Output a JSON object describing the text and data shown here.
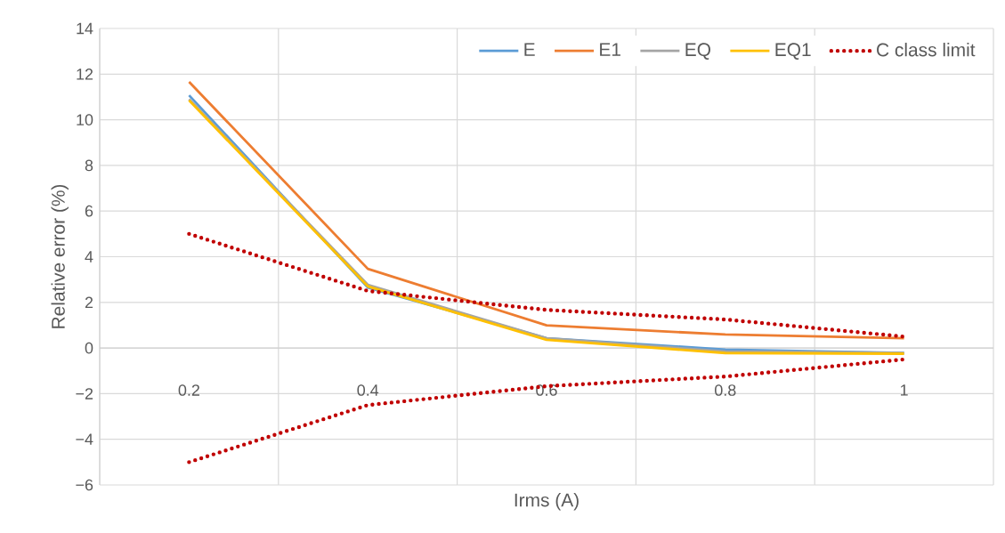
{
  "chart_data": {
    "type": "line",
    "xlabel": "Irms (A)",
    "ylabel": "Relative error (%)",
    "categories": [
      "0.2",
      "0.4",
      "0.6",
      "0.8",
      "1"
    ],
    "series": [
      {
        "name": "E",
        "color": "#5b9bd5",
        "values": [
          11.07,
          2.65,
          0.43,
          -0.07,
          -0.22
        ]
      },
      {
        "name": "E1",
        "color": "#ed7d31",
        "values": [
          11.66,
          3.47,
          0.99,
          0.59,
          0.43
        ]
      },
      {
        "name": "EQ",
        "color": "#a5a5a5",
        "values": [
          10.9,
          2.77,
          0.43,
          -0.15,
          -0.22
        ]
      },
      {
        "name": "EQ1",
        "color": "#ffc000",
        "values": [
          10.85,
          2.7,
          0.36,
          -0.22,
          -0.25
        ]
      },
      {
        "name": "C class limit",
        "color": "#c00000",
        "line_style": "dotted",
        "values": [
          5,
          2.5,
          1.67,
          1.25,
          0.5
        ]
      },
      {
        "color": "#c00000",
        "line_style": "dotted",
        "values": [
          -5,
          -2.5,
          -1.67,
          -1.25,
          -0.5
        ]
      }
    ],
    "ylim": [
      -6,
      14
    ],
    "yticks": [
      {
        "value": -6,
        "label": "−6"
      },
      {
        "value": -4,
        "label": "−4"
      },
      {
        "value": -2,
        "label": "−2"
      },
      0,
      2,
      4,
      6,
      8,
      10,
      12,
      14
    ],
    "grid": true,
    "legend": "top right",
    "marker": "none",
    "line_style": "solid"
  }
}
